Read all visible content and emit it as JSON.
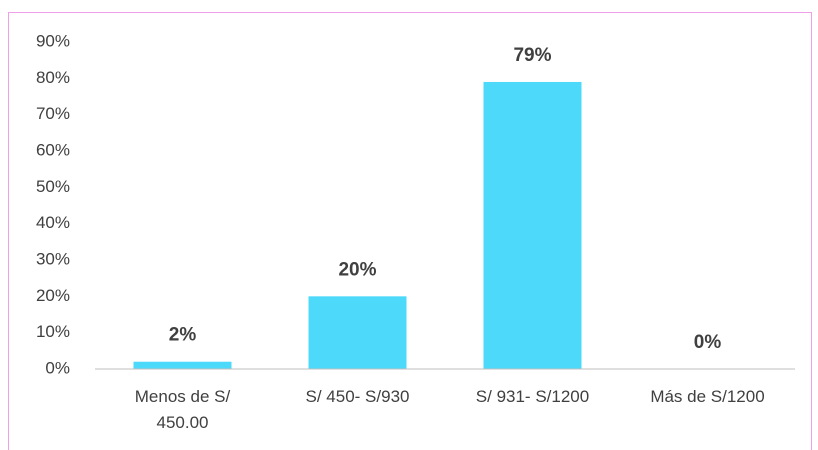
{
  "chart_data": {
    "type": "bar",
    "categories": [
      "Menos de S/ 450.00",
      "S/ 450- S/930",
      "S/ 931- S/1200",
      "Más de S/1200"
    ],
    "values": [
      2,
      20,
      79,
      0
    ],
    "value_labels": [
      "2%",
      "20%",
      "79%",
      "0%"
    ],
    "color": "#4dd9fa",
    "ylim": [
      0,
      90
    ],
    "yticks": [
      {
        "value": 0,
        "label": "0%"
      },
      {
        "value": 10,
        "label": "10%"
      },
      {
        "value": 20,
        "label": "20%"
      },
      {
        "value": 30,
        "label": "30%"
      },
      {
        "value": 40,
        "label": "40%"
      },
      {
        "value": 50,
        "label": "50%"
      },
      {
        "value": 60,
        "label": "60%"
      },
      {
        "value": 70,
        "label": "70%"
      },
      {
        "value": 80,
        "label": "80%"
      },
      {
        "value": 90,
        "label": "90%"
      }
    ],
    "grid": false
  }
}
